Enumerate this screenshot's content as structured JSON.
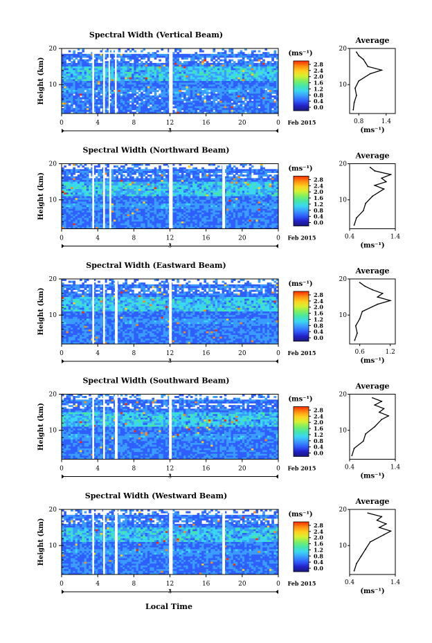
{
  "figure": {
    "xlabel": "Local Time",
    "date_label": "3",
    "month_label": "Feb 2015",
    "x_ticks": [
      "0",
      "4",
      "8",
      "12",
      "16",
      "20",
      "0"
    ],
    "y_label": "Height (km)",
    "y_ticks": [
      "20",
      "10"
    ],
    "cbar_unit": "(ms⁻¹)",
    "cbar_ticks": [
      "2.8",
      "2.4",
      "2.0",
      "1.6",
      "1.2",
      "0.8",
      "0.4",
      "0.0"
    ],
    "avg_title": "Average",
    "avg_unit": "(ms⁻¹)",
    "colormap": [
      "#1a1a7a",
      "#2222c8",
      "#2f5fff",
      "#3a9cff",
      "#3ad8f0",
      "#46e6a8",
      "#7ef060",
      "#d8f030",
      "#ffd020",
      "#ff8a10",
      "#ff2a00"
    ],
    "gap_color": "#ffffff"
  },
  "chart_data": [
    {
      "type": "heatmap",
      "title": "Spectral Width (Vertical Beam)",
      "x_range_hours": [
        0,
        24
      ],
      "y_range_km": [
        2,
        20
      ],
      "z_range": [
        0,
        3.0
      ],
      "data_gaps_hours": [
        [
          3.4,
          3.6
        ],
        [
          4.6,
          4.8
        ],
        [
          5.2,
          5.3
        ],
        [
          5.9,
          6.1
        ],
        [
          11.9,
          12.3
        ]
      ],
      "profile": {
        "type": "line",
        "title": "Average",
        "x_ticks": [
          "0.8",
          "1.4"
        ],
        "y_ticks": [
          "20",
          "10"
        ],
        "xlim": [
          0.6,
          1.6
        ],
        "height_km": [
          3,
          5,
          7,
          9,
          11,
          13,
          14,
          15,
          16,
          17,
          18,
          19
        ],
        "width_ms": [
          0.68,
          0.7,
          0.75,
          0.72,
          0.8,
          1.05,
          1.3,
          1.0,
          0.95,
          0.9,
          0.8,
          0.75
        ]
      }
    },
    {
      "type": "heatmap",
      "title": "Spectral Width (Northward Beam)",
      "x_range_hours": [
        0,
        24
      ],
      "y_range_km": [
        2,
        20
      ],
      "z_range": [
        0,
        3.0
      ],
      "data_gaps_hours": [
        [
          3.4,
          3.6
        ],
        [
          4.6,
          4.8
        ],
        [
          5.3,
          5.5
        ],
        [
          11.9,
          12.3
        ],
        [
          17.8,
          18.1
        ]
      ],
      "profile": {
        "type": "line",
        "title": "Average",
        "x_ticks": [
          "0.4",
          "1.4"
        ],
        "y_ticks": [
          "20",
          "10"
        ],
        "xlim": [
          0.4,
          1.4
        ],
        "height_km": [
          3,
          5,
          7,
          9,
          11,
          13,
          14,
          15,
          16,
          17,
          18,
          19
        ],
        "width_ms": [
          0.5,
          0.55,
          0.7,
          0.75,
          0.9,
          1.15,
          0.95,
          1.2,
          1.1,
          1.3,
          0.95,
          0.85
        ]
      }
    },
    {
      "type": "heatmap",
      "title": "Spectral Width (Eastward Beam)",
      "x_range_hours": [
        0,
        24
      ],
      "y_range_km": [
        2,
        20
      ],
      "z_range": [
        0,
        3.0
      ],
      "data_gaps_hours": [
        [
          3.4,
          3.6
        ],
        [
          4.6,
          4.8
        ],
        [
          5.9,
          6.2
        ],
        [
          11.9,
          12.2
        ]
      ],
      "profile": {
        "type": "line",
        "title": "Average",
        "x_ticks": [
          "0.6",
          "1.2"
        ],
        "y_ticks": [
          "20",
          "10"
        ],
        "xlim": [
          0.4,
          1.3
        ],
        "height_km": [
          3,
          5,
          7,
          9,
          11,
          13,
          14,
          15,
          16,
          17,
          18,
          19
        ],
        "width_ms": [
          0.5,
          0.55,
          0.52,
          0.6,
          0.65,
          0.95,
          1.2,
          0.95,
          1.05,
          0.85,
          0.7,
          0.6
        ]
      }
    },
    {
      "type": "heatmap",
      "title": "Spectral Width (Southward Beam)",
      "x_range_hours": [
        0,
        24
      ],
      "y_range_km": [
        2,
        20
      ],
      "z_range": [
        0,
        3.0
      ],
      "data_gaps_hours": [
        [
          3.4,
          3.6
        ],
        [
          4.6,
          4.8
        ],
        [
          5.9,
          6.2
        ],
        [
          11.9,
          12.2
        ]
      ],
      "profile": {
        "type": "line",
        "title": "Average",
        "x_ticks": [
          "0.4",
          "1.4"
        ],
        "y_ticks": [
          "20",
          "10"
        ],
        "xlim": [
          0.4,
          1.4
        ],
        "height_km": [
          3,
          5,
          7,
          9,
          11,
          13,
          14,
          15,
          16,
          17,
          18,
          19
        ],
        "width_ms": [
          0.45,
          0.5,
          0.7,
          0.75,
          0.95,
          1.1,
          1.25,
          1.05,
          1.15,
          0.95,
          1.1,
          0.9
        ]
      }
    },
    {
      "type": "heatmap",
      "title": "Spectral Width (Westward Beam)",
      "x_range_hours": [
        0,
        24
      ],
      "y_range_km": [
        2,
        20
      ],
      "z_range": [
        0,
        3.0
      ],
      "data_gaps_hours": [
        [
          3.4,
          3.6
        ],
        [
          4.6,
          4.8
        ],
        [
          5.9,
          6.2
        ],
        [
          11.9,
          12.3
        ],
        [
          17.8,
          18.1
        ]
      ],
      "profile": {
        "type": "line",
        "title": "Average",
        "x_ticks": [
          "0.4",
          "1.4"
        ],
        "y_ticks": [
          "20",
          "10"
        ],
        "xlim": [
          0.4,
          1.4
        ],
        "height_km": [
          3,
          5,
          7,
          9,
          11,
          13,
          14,
          15,
          16,
          17,
          18,
          19
        ],
        "width_ms": [
          0.5,
          0.55,
          0.65,
          0.75,
          0.85,
          1.15,
          1.3,
          1.05,
          1.2,
          1.0,
          1.1,
          0.8
        ]
      }
    }
  ]
}
